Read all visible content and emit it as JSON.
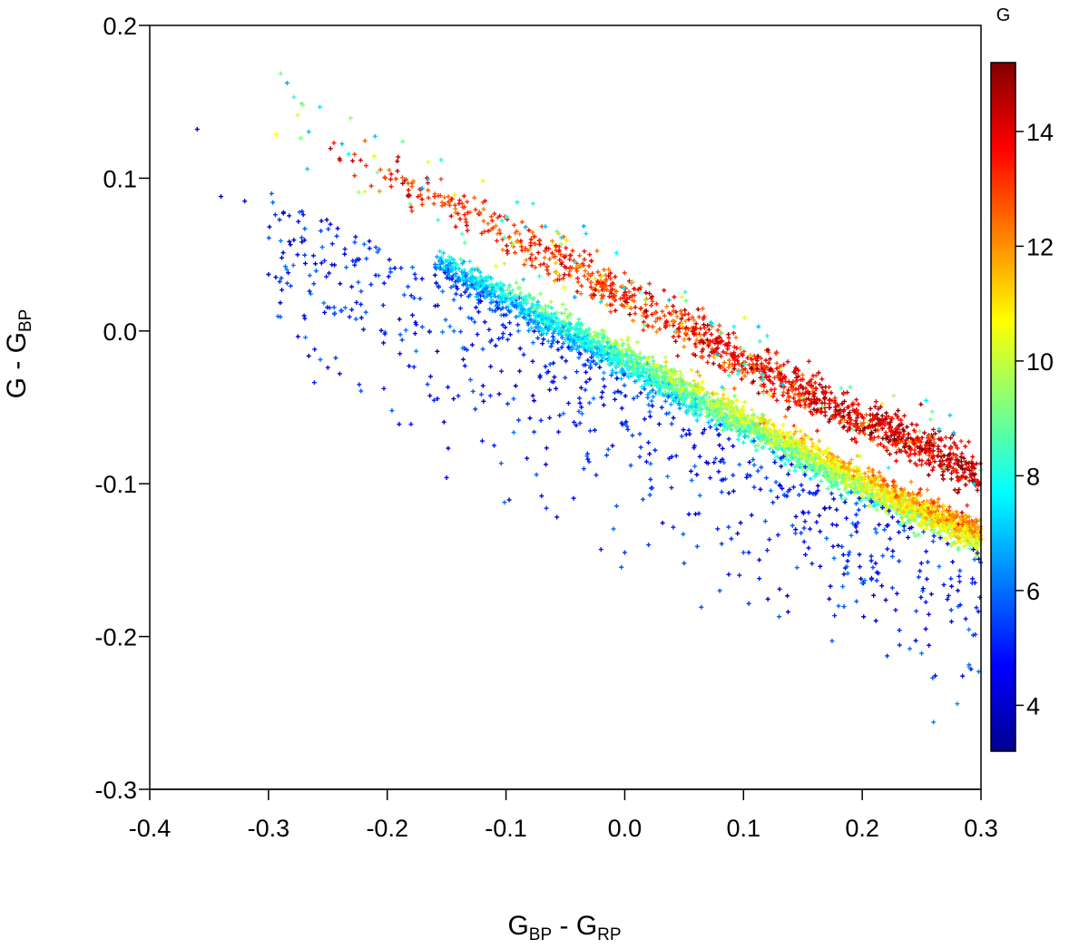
{
  "chart_data": {
    "type": "scatter",
    "title": "",
    "xlabel": {
      "main1": "G",
      "sub1": "BP",
      "sep": " - ",
      "main2": "G",
      "sub2": "RP"
    },
    "ylabel": {
      "main1": "G",
      "sep": " - ",
      "main2": "G",
      "sub2": "BP"
    },
    "xlim": [
      -0.4,
      0.3
    ],
    "ylim": [
      -0.3,
      0.2
    ],
    "x_ticks": [
      -0.4,
      -0.3,
      -0.2,
      -0.1,
      0.0,
      0.1,
      0.2,
      0.3
    ],
    "x_tick_labels": [
      "-0.4",
      "-0.3",
      "-0.2",
      "-0.1",
      "0.0",
      "0.1",
      "0.2",
      "0.3"
    ],
    "y_ticks": [
      0.2,
      0.1,
      0.0,
      -0.1,
      -0.2,
      -0.3
    ],
    "y_tick_labels": [
      "0.2",
      "0.1",
      "0.0",
      "-0.1",
      "-0.2",
      "-0.3"
    ],
    "grid": false,
    "marker": "+",
    "colorbar": {
      "title": "G",
      "range": [
        3.2,
        15.2
      ],
      "ticks": [
        4,
        6,
        8,
        10,
        12,
        14
      ],
      "tick_labels": [
        "4",
        "6",
        "8",
        "10",
        "12",
        "14"
      ],
      "colormap": [
        "#00008f",
        "#0000ff",
        "#0080ff",
        "#00ffff",
        "#80ff80",
        "#ffff00",
        "#ff8000",
        "#ff0000",
        "#800000"
      ]
    },
    "series": [
      {
        "role": "main_sequence_band",
        "x": [
          -0.16,
          -0.14,
          -0.12,
          -0.1,
          -0.08,
          -0.06,
          -0.04,
          -0.02,
          0.0,
          0.02,
          0.04,
          0.06,
          0.08,
          0.1,
          0.12,
          0.14,
          0.16,
          0.18,
          0.2,
          0.22,
          0.24,
          0.26,
          0.28,
          0.3
        ],
        "y": [
          0.045,
          0.037,
          0.029,
          0.021,
          0.013,
          0.005,
          -0.003,
          -0.012,
          -0.02,
          -0.028,
          -0.036,
          -0.044,
          -0.052,
          -0.06,
          -0.068,
          -0.076,
          -0.084,
          -0.092,
          -0.1,
          -0.108,
          -0.116,
          -0.122,
          -0.128,
          -0.134
        ],
        "G": [
          6.5,
          6.8,
          7.0,
          7.2,
          7.4,
          7.6,
          7.8,
          8.0,
          8.2,
          8.5,
          8.8,
          9.0,
          9.2,
          9.4,
          9.6,
          9.8,
          10.0,
          10.2,
          10.4,
          10.6,
          10.8,
          11.0,
          11.2,
          11.4
        ]
      },
      {
        "role": "faint_upper_branch",
        "x": [
          -0.25,
          -0.2,
          -0.15,
          -0.1,
          -0.05,
          0.0,
          0.05,
          0.1,
          0.15,
          0.2,
          0.25,
          0.3
        ],
        "y": [
          0.12,
          0.1,
          0.085,
          0.063,
          0.045,
          0.023,
          0.002,
          -0.02,
          -0.04,
          -0.058,
          -0.075,
          -0.095
        ],
        "G": [
          13.8,
          13.5,
          13.2,
          13.0,
          13.0,
          13.2,
          13.4,
          13.6,
          13.8,
          14.0,
          14.2,
          14.4
        ]
      },
      {
        "role": "bright_scatter",
        "x": [
          -0.36,
          -0.34,
          -0.32,
          -0.3,
          -0.27,
          -0.25,
          -0.24,
          -0.22,
          -0.19,
          -0.18,
          -0.15,
          -0.12,
          -0.11,
          -0.07,
          -0.066,
          -0.02,
          0.0,
          0.02,
          0.05,
          0.08,
          0.1,
          0.13,
          0.18,
          0.2,
          0.24,
          0.25,
          0.26,
          0.28,
          0.29
        ],
        "y": [
          0.132,
          0.088,
          0.085,
          0.037,
          0.01,
          -0.024,
          -0.028,
          0.001,
          -0.061,
          -0.061,
          -0.096,
          -0.072,
          -0.075,
          -0.108,
          -0.116,
          -0.143,
          -0.145,
          -0.14,
          -0.152,
          -0.17,
          -0.145,
          -0.187,
          -0.18,
          -0.165,
          -0.208,
          -0.211,
          -0.256,
          -0.244,
          -0.22
        ],
        "G": [
          4.0,
          4.2,
          4.5,
          4.4,
          4.6,
          4.8,
          4.5,
          4.9,
          4.7,
          5.0,
          4.6,
          4.8,
          5.1,
          4.9,
          5.2,
          5.0,
          5.3,
          5.4,
          5.5,
          5.6,
          5.7,
          5.8,
          5.9,
          6.0,
          6.1,
          6.2,
          6.3,
          6.4,
          6.5
        ]
      }
    ]
  }
}
